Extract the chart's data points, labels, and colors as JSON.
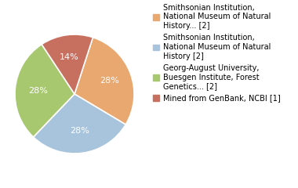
{
  "slices": [
    {
      "label": "Smithsonian Institution,\nNational Museum of Natural\nHistory... [2]",
      "value": 28,
      "color": "#E8A870"
    },
    {
      "label": "Smithsonian Institution,\nNational Museum of Natural\nHistory [2]",
      "value": 28,
      "color": "#A8C4DC"
    },
    {
      "label": "Georg-August University,\nBuesgen Institute, Forest\nGenetics... [2]",
      "value": 28,
      "color": "#A8C870"
    },
    {
      "label": "Mined from GenBank, NCBI [1]",
      "value": 14,
      "color": "#C87060"
    }
  ],
  "pct_labels": [
    "28%",
    "28%",
    "28%",
    "14%"
  ],
  "pct_label_color": "white",
  "pct_fontsize": 8,
  "legend_fontsize": 7,
  "background_color": "#ffffff",
  "startangle": 72
}
